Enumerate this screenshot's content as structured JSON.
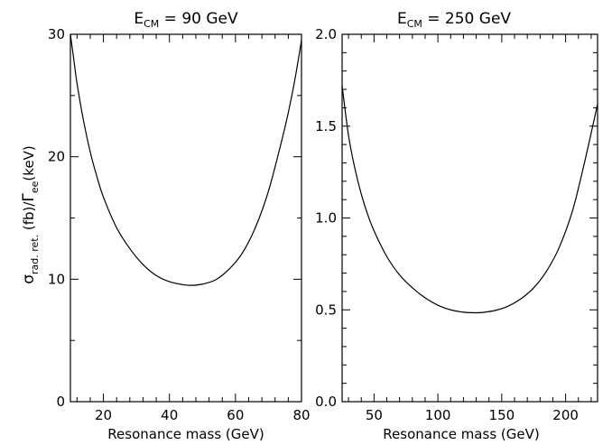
{
  "ylabel": {
    "sigma": "σ",
    "sigma_sub": "rad. ret.",
    "mid": " (fb)/",
    "gamma": "Γ",
    "gamma_sub": "ee",
    "unit": "(keV)"
  },
  "chart_data": [
    {
      "type": "line",
      "title_main": "E",
      "title_sub": "CM",
      "title_rest": " = 90 GeV",
      "xlabel": "Resonance mass (GeV)",
      "xlim": [
        10,
        80
      ],
      "ylim": [
        0,
        30
      ],
      "xticks_major": [
        20,
        40,
        60,
        80
      ],
      "yticks_major": [
        0,
        10,
        20,
        30
      ],
      "xtick_labels": [
        "20",
        "40",
        "60",
        "80"
      ],
      "ytick_labels": [
        "0",
        "10",
        "20",
        "30"
      ],
      "series": [
        {
          "x": [
            10,
            11,
            12,
            14,
            16,
            18,
            20,
            24,
            28,
            32,
            36,
            40,
            44,
            46.5,
            50,
            54,
            58,
            62,
            66,
            70,
            74,
            76,
            78,
            80
          ],
          "y": [
            30.6,
            28.0,
            26.0,
            22.9,
            20.4,
            18.4,
            16.7,
            14.2,
            12.5,
            11.2,
            10.3,
            9.8,
            9.56,
            9.5,
            9.6,
            9.95,
            10.8,
            12.1,
            14.2,
            17.2,
            21.3,
            23.6,
            26.3,
            29.5
          ]
        }
      ]
    },
    {
      "type": "line",
      "title_main": "E",
      "title_sub": "CM",
      "title_rest": " = 250 GeV",
      "xlabel": "Resonance mass (GeV)",
      "xlim": [
        25,
        225
      ],
      "ylim": [
        0,
        2.0
      ],
      "xticks_major": [
        50,
        100,
        150,
        200
      ],
      "yticks_major": [
        0,
        0.5,
        1.0,
        1.5,
        2.0
      ],
      "xtick_labels": [
        "50",
        "100",
        "150",
        "200"
      ],
      "ytick_labels": [
        "0.0",
        "0.5",
        "1.0",
        "1.5",
        "2.0"
      ],
      "series": [
        {
          "x": [
            25,
            30,
            35,
            40,
            45,
            50,
            60,
            70,
            80,
            90,
            100,
            110,
            120,
            128,
            135,
            145,
            155,
            165,
            175,
            185,
            195,
            205,
            212,
            218,
            225
          ],
          "y": [
            1.72,
            1.45,
            1.27,
            1.13,
            1.02,
            0.93,
            0.79,
            0.69,
            0.62,
            0.565,
            0.525,
            0.5,
            0.487,
            0.484,
            0.486,
            0.497,
            0.52,
            0.56,
            0.62,
            0.71,
            0.84,
            1.03,
            1.22,
            1.4,
            1.62
          ]
        }
      ]
    }
  ]
}
